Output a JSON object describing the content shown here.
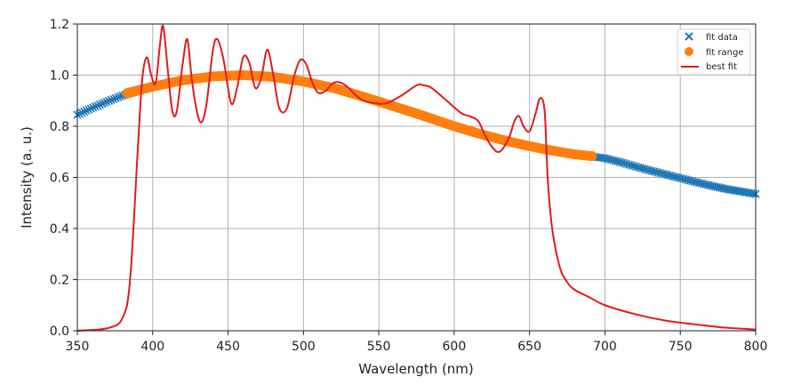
{
  "chart_data": {
    "type": "scatter",
    "title": "",
    "xlabel": "Wavelength (nm)",
    "ylabel": "Intensity (a. u.)",
    "xlim": [
      350,
      800
    ],
    "ylim": [
      0.0,
      1.2
    ],
    "grid": true,
    "legend_position": "top-right",
    "xticks": [
      "350",
      "400",
      "450",
      "500",
      "550",
      "600",
      "650",
      "700",
      "750",
      "800"
    ],
    "yticks": [
      "0.0",
      "0.2",
      "0.4",
      "0.6",
      "0.8",
      "1.0",
      "1.2"
    ],
    "series": [
      {
        "name": "fit data",
        "marker": "x",
        "color": "#1f77b4",
        "x": [
          350,
          360,
          370,
          380,
          400,
          420,
          440,
          460,
          480,
          500,
          520,
          540,
          560,
          580,
          600,
          620,
          640,
          660,
          680,
          690,
          700,
          710,
          720,
          730,
          740,
          750,
          760,
          770,
          780,
          790,
          800
        ],
        "y": [
          0.845,
          0.872,
          0.897,
          0.92,
          0.955,
          0.98,
          0.995,
          1.0,
          0.993,
          0.975,
          0.95,
          0.915,
          0.878,
          0.84,
          0.8,
          0.765,
          0.735,
          0.71,
          0.69,
          0.683,
          0.675,
          0.66,
          0.643,
          0.627,
          0.612,
          0.597,
          0.582,
          0.568,
          0.555,
          0.545,
          0.535
        ]
      },
      {
        "name": "fit range",
        "marker": "o",
        "color": "#ff7f0e",
        "x": [
          383,
          400,
          420,
          440,
          460,
          480,
          500,
          520,
          540,
          560,
          580,
          600,
          620,
          640,
          660,
          680,
          692
        ],
        "y": [
          0.93,
          0.955,
          0.98,
          0.995,
          1.0,
          0.993,
          0.975,
          0.95,
          0.915,
          0.878,
          0.84,
          0.8,
          0.765,
          0.735,
          0.71,
          0.69,
          0.683
        ]
      },
      {
        "name": "best fit",
        "marker": "line",
        "color": "#e31a1c",
        "x": [
          350,
          370,
          380,
          385,
          390,
          393,
          396,
          399,
          402,
          405,
          407,
          410,
          413,
          416,
          420,
          423,
          426,
          430,
          433,
          436,
          440,
          443,
          447,
          452,
          456,
          460,
          464,
          468,
          472,
          476,
          480,
          484,
          489,
          494,
          498,
          502,
          506,
          510,
          515,
          520,
          525,
          530,
          535,
          540,
          548,
          555,
          565,
          575,
          580,
          585,
          595,
          605,
          610,
          616,
          620,
          625,
          630,
          636,
          640,
          643,
          646,
          650,
          654,
          657,
          660,
          662,
          665,
          670,
          675,
          680,
          690,
          700,
          720,
          740,
          760,
          780,
          800
        ],
        "y": [
          0.0,
          0.01,
          0.05,
          0.2,
          0.7,
          0.98,
          1.07,
          1.0,
          0.97,
          1.13,
          1.19,
          1.02,
          0.86,
          0.86,
          1.05,
          1.14,
          0.98,
          0.84,
          0.82,
          0.9,
          1.1,
          1.14,
          1.06,
          0.89,
          0.95,
          1.07,
          1.05,
          0.95,
          0.99,
          1.1,
          1.0,
          0.87,
          0.87,
          1.0,
          1.06,
          1.04,
          0.97,
          0.93,
          0.94,
          0.97,
          0.97,
          0.95,
          0.92,
          0.9,
          0.89,
          0.89,
          0.92,
          0.96,
          0.96,
          0.95,
          0.9,
          0.85,
          0.84,
          0.82,
          0.77,
          0.72,
          0.7,
          0.75,
          0.82,
          0.84,
          0.8,
          0.78,
          0.85,
          0.91,
          0.86,
          0.6,
          0.4,
          0.25,
          0.19,
          0.16,
          0.13,
          0.1,
          0.065,
          0.04,
          0.025,
          0.012,
          0.005
        ]
      }
    ]
  }
}
